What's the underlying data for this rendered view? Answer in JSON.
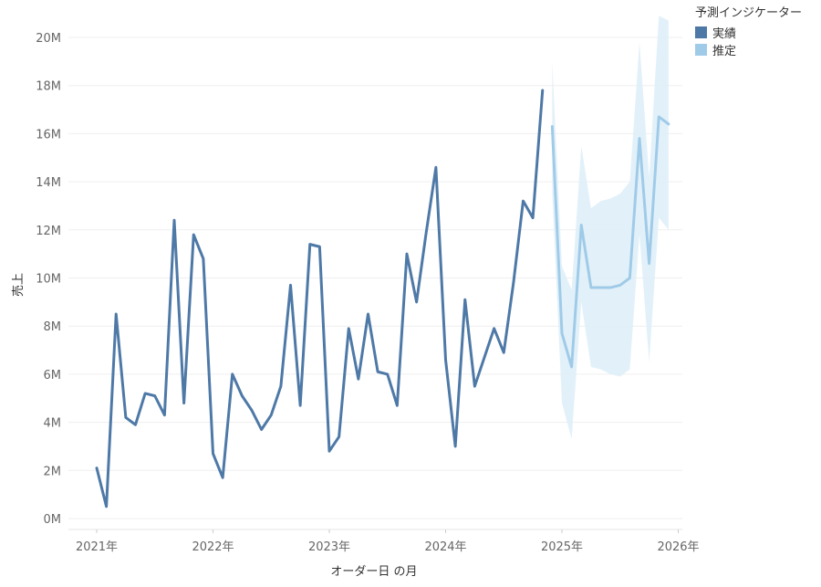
{
  "chart_data": {
    "type": "line",
    "xlabel": "オーダー日 の月",
    "ylabel": "売上",
    "x_ticks": [
      "2021年",
      "2022年",
      "2023年",
      "2024年",
      "2025年",
      "2026年"
    ],
    "y_ticks": [
      "0M",
      "2M",
      "4M",
      "6M",
      "8M",
      "10M",
      "12M",
      "14M",
      "16M",
      "18M",
      "20M"
    ],
    "ylim": [
      0,
      21
    ],
    "grid": true,
    "legend": {
      "title": "予測インジケーター",
      "placement": "top-right",
      "items": [
        {
          "label": "実績",
          "color": "#4e79a7"
        },
        {
          "label": "推定",
          "color": "#a0cbe8"
        }
      ]
    },
    "series": [
      {
        "name": "実績",
        "color": "#4e79a7",
        "x": [
          "2021-01",
          "2021-02",
          "2021-03",
          "2021-04",
          "2021-05",
          "2021-06",
          "2021-07",
          "2021-08",
          "2021-09",
          "2021-10",
          "2021-11",
          "2021-12",
          "2022-01",
          "2022-02",
          "2022-03",
          "2022-04",
          "2022-05",
          "2022-06",
          "2022-07",
          "2022-08",
          "2022-09",
          "2022-10",
          "2022-11",
          "2022-12",
          "2023-01",
          "2023-02",
          "2023-03",
          "2023-04",
          "2023-05",
          "2023-06",
          "2023-07",
          "2023-08",
          "2023-09",
          "2023-10",
          "2023-11",
          "2023-12",
          "2024-01",
          "2024-02",
          "2024-03",
          "2024-04",
          "2024-05",
          "2024-06",
          "2024-07",
          "2024-08",
          "2024-09",
          "2024-10",
          "2024-11",
          "2024-12"
        ],
        "values": [
          2.1,
          0.5,
          8.5,
          4.2,
          3.9,
          5.2,
          5.1,
          4.3,
          12.4,
          4.8,
          11.8,
          10.8,
          2.7,
          1.7,
          6.0,
          5.1,
          4.5,
          3.7,
          4.3,
          5.5,
          9.7,
          4.7,
          11.4,
          11.3,
          2.8,
          3.4,
          7.9,
          5.8,
          8.5,
          6.1,
          6.0,
          4.7,
          11.0,
          9.0,
          11.9,
          14.6,
          6.6,
          3.0,
          9.1,
          5.5,
          6.7,
          7.9,
          6.9,
          9.8,
          13.2,
          12.5,
          17.8,
          null
        ]
      },
      {
        "name": "推定",
        "color": "#a0cbe8",
        "x": [
          "2024-12",
          "2025-01",
          "2025-02",
          "2025-03",
          "2025-04",
          "2025-05",
          "2025-06",
          "2025-07",
          "2025-08",
          "2025-09",
          "2025-10",
          "2025-11",
          "2025-12"
        ],
        "values": [
          16.3,
          7.7,
          6.3,
          12.2,
          9.6,
          9.6,
          9.6,
          9.7,
          10.0,
          15.8,
          10.6,
          16.7,
          16.4
        ],
        "band_upper": [
          19.0,
          10.5,
          9.5,
          15.5,
          12.9,
          13.2,
          13.3,
          13.5,
          14.0,
          19.8,
          14.2,
          20.9,
          20.7
        ],
        "band_lower": [
          13.5,
          4.8,
          3.3,
          9.0,
          6.3,
          6.2,
          6.0,
          5.9,
          6.2,
          11.8,
          6.5,
          12.5,
          12.0
        ]
      }
    ]
  }
}
